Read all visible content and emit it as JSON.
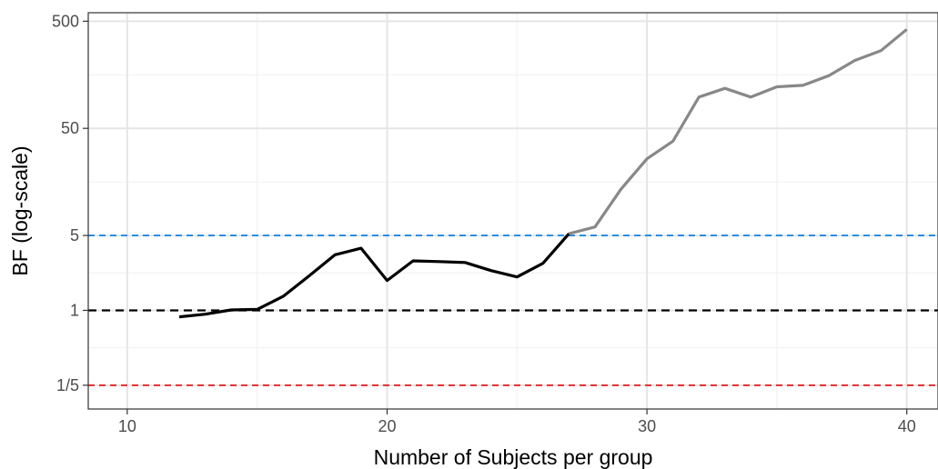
{
  "chart_data": {
    "type": "line",
    "title": "",
    "xlabel": "Number of Subjects per group",
    "ylabel": "BF (log-scale)",
    "y_scale": "log",
    "xlim": [
      8.5,
      41.2
    ],
    "ylim": [
      0.12,
      600
    ],
    "grid": true,
    "legend": "none",
    "x_ticks": [
      {
        "value": 10,
        "label": "10"
      },
      {
        "value": 20,
        "label": "20"
      },
      {
        "value": 30,
        "label": "30"
      },
      {
        "value": 40,
        "label": "40"
      }
    ],
    "y_ticks": [
      {
        "value": 0.2,
        "label": "1/5"
      },
      {
        "value": 1,
        "label": "1"
      },
      {
        "value": 5,
        "label": "5"
      },
      {
        "value": 50,
        "label": "50"
      },
      {
        "value": 500,
        "label": "500"
      }
    ],
    "reference_lines": [
      {
        "y": 5,
        "color": "#1e88e5",
        "style": "dashed"
      },
      {
        "y": 1,
        "color": "#000000",
        "style": "dashed"
      },
      {
        "y": 0.2,
        "color": "#e41a1c",
        "style": "dashed"
      }
    ],
    "series": [
      {
        "color": "#000000",
        "x": [
          12,
          13,
          14,
          15,
          16,
          17,
          18,
          19,
          20,
          21,
          22,
          23,
          24,
          25,
          26,
          27
        ],
        "y": [
          0.87,
          0.92,
          1.01,
          1.02,
          1.35,
          2.1,
          3.3,
          3.8,
          1.9,
          2.9,
          2.85,
          2.8,
          2.35,
          2.05,
          2.75,
          5.2
        ]
      },
      {
        "color": "#888888",
        "x": [
          27,
          28,
          29,
          30,
          31,
          32,
          33,
          34,
          35,
          36,
          37,
          38,
          39,
          40
        ],
        "y": [
          5.2,
          6.0,
          13.5,
          26,
          38,
          98,
          118,
          98,
          122,
          126,
          155,
          215,
          265,
          420
        ]
      }
    ]
  }
}
